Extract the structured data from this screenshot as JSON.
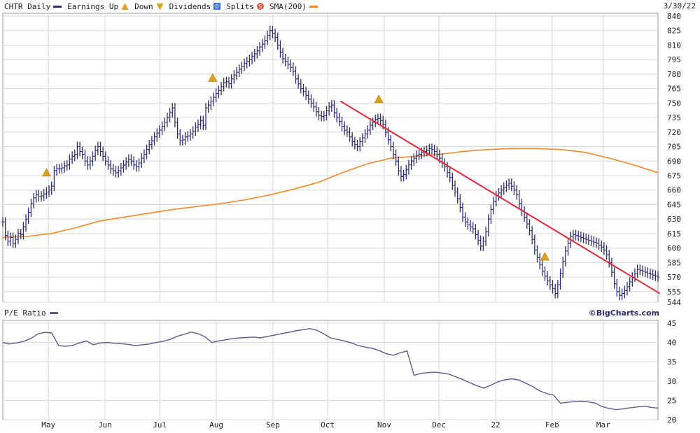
{
  "legend": {
    "ticker": "CHTR Daily",
    "earnings_up": "Earnings Up",
    "down": "Down",
    "dividends": "Dividends",
    "splits": "Splits",
    "sma": "SMA(200)",
    "dividend_marker": "D",
    "split_marker": "S"
  },
  "date_label": "3/30/22",
  "credit": "©BigCharts.com",
  "colors": {
    "price_bars": "#2d2d6b",
    "sma": "#f08a2c",
    "trendline": "#e0283c",
    "earnings": "#e0a020",
    "grid": "#d8d8d8",
    "pe_line": "#5a5a8e"
  },
  "chart_data": [
    {
      "type": "line",
      "x_axis": {
        "type": "date",
        "ticks": [
          "May",
          "Jun",
          "Jul",
          "Aug",
          "Sep",
          "Oct",
          "Nov",
          "Dec",
          "22",
          "Feb",
          "Mar"
        ]
      },
      "y_axis": {
        "position": "right",
        "ylim": [
          544,
          840
        ],
        "ticks": [
          544,
          555,
          570,
          585,
          600,
          615,
          630,
          645,
          660,
          675,
          690,
          705,
          720,
          735,
          750,
          765,
          780,
          795,
          810,
          825,
          840
        ]
      },
      "grid": true,
      "series": [
        {
          "style": "ohlc-bars",
          "start_date": "2021-04-06",
          "values": [
            627,
            613,
            607,
            611,
            605,
            609,
            615,
            614,
            622,
            630,
            637,
            646,
            652,
            655,
            653,
            654,
            656,
            658,
            660,
            664,
            680,
            682,
            682,
            683,
            685,
            686,
            692,
            695,
            697,
            705,
            700,
            697,
            690,
            686,
            690,
            695,
            701,
            705,
            700,
            695,
            690,
            686,
            682,
            680,
            678,
            680,
            683,
            686,
            689,
            692,
            690,
            686,
            684,
            688,
            693,
            697,
            702,
            707,
            711,
            715,
            719,
            722,
            726,
            730,
            735,
            740,
            745,
            730,
            718,
            711,
            712,
            715,
            716,
            718,
            721,
            725,
            728,
            732,
            727,
            745,
            748,
            752,
            756,
            760,
            763,
            767,
            771,
            772,
            770,
            775,
            779,
            782,
            785,
            788,
            791,
            793,
            795,
            798,
            801,
            804,
            808,
            811,
            815,
            820,
            825,
            822,
            818,
            810,
            802,
            796,
            793,
            790,
            787,
            783,
            775,
            770,
            765,
            762,
            758,
            754,
            750,
            746,
            741,
            737,
            736,
            737,
            742,
            746,
            748,
            740,
            735,
            731,
            726,
            722,
            720,
            715,
            710,
            707,
            705,
            710,
            714,
            718,
            722,
            727,
            730,
            733,
            734,
            732,
            728,
            720,
            712,
            705,
            697,
            690,
            680,
            674,
            676,
            681,
            686,
            690,
            693,
            696,
            697,
            699,
            700,
            701,
            703,
            702,
            700,
            697,
            693,
            688,
            684,
            678,
            673,
            665,
            658,
            651,
            642,
            632,
            627,
            624,
            622,
            620,
            614,
            608,
            602,
            607,
            617,
            630,
            640,
            648,
            654,
            657,
            660,
            663,
            665,
            667,
            664,
            660,
            655,
            646,
            638,
            632,
            625,
            618,
            609,
            598,
            590,
            583,
            576,
            571,
            566,
            562,
            558,
            553,
            562,
            574,
            586,
            597,
            605,
            612,
            614,
            613,
            612,
            611,
            610,
            609,
            608,
            607,
            606,
            605,
            603,
            601,
            598,
            593,
            585,
            575,
            563,
            555,
            551,
            553,
            556,
            560,
            565,
            570,
            574,
            578,
            577,
            576,
            575,
            574,
            573,
            572,
            571,
            570
          ]
        },
        {
          "name": "SMA(200)",
          "start_date": "2021-04-06",
          "values": [
            611,
            612,
            615,
            621,
            628,
            632,
            636,
            640,
            643,
            646,
            650,
            655,
            661,
            668,
            678,
            687,
            693,
            695,
            697,
            700,
            702,
            703,
            703,
            702,
            699,
            693,
            686,
            678
          ]
        }
      ],
      "annotations": [
        {
          "type": "earnings",
          "date": "2021-04-30",
          "label": "Earnings"
        },
        {
          "type": "earnings",
          "date": "2021-07-30",
          "label": "Earnings"
        },
        {
          "type": "earnings",
          "date": "2021-10-29",
          "label": "Earnings"
        },
        {
          "type": "earnings",
          "date": "2022-01-28",
          "label": "Earnings"
        },
        {
          "type": "trendline",
          "from": {
            "date": "2021-10-08",
            "y": 752
          },
          "to": {
            "date": "2022-04-01",
            "y": 553
          }
        }
      ]
    },
    {
      "type": "line",
      "title": "P/E Ratio",
      "y_axis": {
        "position": "right",
        "ylim": [
          20,
          45
        ],
        "ticks": [
          20,
          25,
          30,
          35,
          40,
          45
        ]
      },
      "grid": true,
      "series": [
        {
          "name": "P/E Ratio",
          "start_date": "2021-04-06",
          "values": [
            40,
            39.6,
            39.9,
            40.3,
            41,
            42.2,
            42.6,
            42.5,
            39.2,
            39,
            39.2,
            39.9,
            40.4,
            39.4,
            39.9,
            40,
            39.8,
            39.7,
            39.5,
            39.2,
            39.4,
            39.6,
            40,
            40.3,
            40.8,
            41.6,
            42.1,
            42.7,
            42.3,
            41.5,
            40,
            40.4,
            40.7,
            41,
            41.2,
            41.3,
            41.4,
            41.2,
            41.6,
            41.9,
            42.3,
            42.6,
            43,
            43.3,
            43.6,
            43.2,
            42.3,
            41.2,
            40.8,
            40.4,
            39.9,
            39.2,
            38.8,
            38.5,
            37.9,
            37.1,
            36.7,
            37.3,
            37.8,
            31.5,
            32,
            32.2,
            32.3,
            32.1,
            31.8,
            31.1,
            30.4,
            29.6,
            28.8,
            28.2,
            28.9,
            29.8,
            30.3,
            30.6,
            30.3,
            29.5,
            28.6,
            27.5,
            26.8,
            26.4,
            24.3,
            24.5,
            24.7,
            24.8,
            24.6,
            24.3,
            23.4,
            22.9,
            22.6,
            22.8,
            23.1,
            23.3,
            23.5,
            23.2,
            23
          ]
        }
      ]
    }
  ]
}
